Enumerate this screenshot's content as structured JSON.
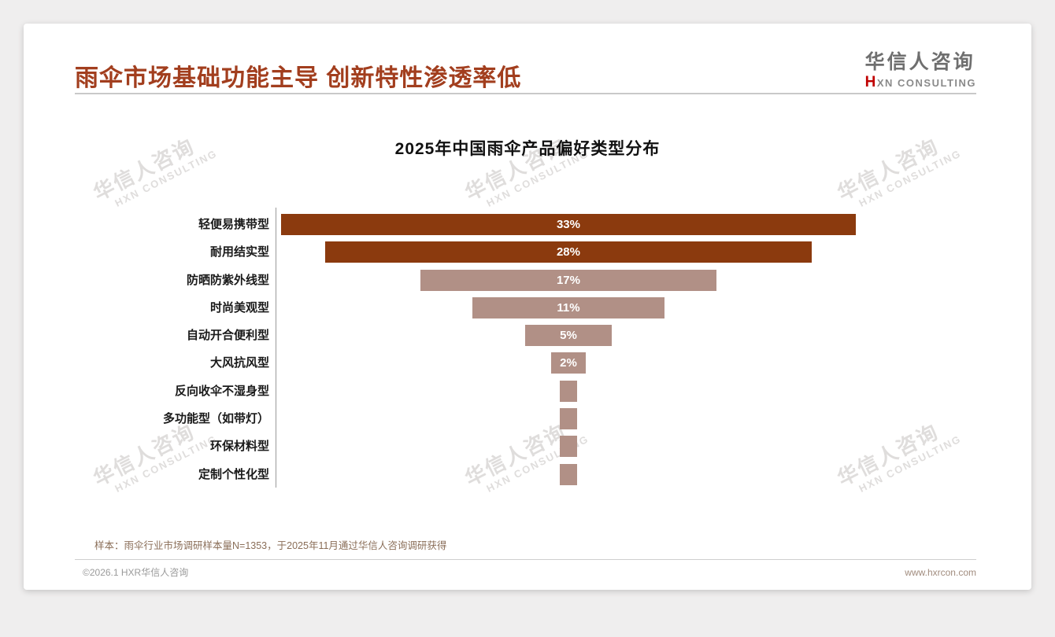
{
  "page": {
    "title": "雨伞市场基础功能主导 创新特性渗透率低",
    "logo": {
      "cn": "华信人咨询",
      "en_accent": "H",
      "en_rest": "XN CONSULTING"
    },
    "watermark": {
      "cn": "华信人咨询",
      "en": "HXN CONSULTING"
    },
    "note": "样本：雨伞行业市场调研样本量N=1353，于2025年11月通过华信人咨询调研获得",
    "footer": {
      "copyright": "©2026.1 HXR华信人咨询",
      "website": "www.hxrcon.com"
    }
  },
  "chart_data": {
    "type": "bar",
    "variant": "centered-funnel-horizontal",
    "title": "2025年中国雨伞产品偏好类型分布",
    "categories": [
      "轻便易携带型",
      "耐用结实型",
      "防晒防紫外线型",
      "时尚美观型",
      "自动开合便利型",
      "大风抗风型",
      "反向收伞不湿身型",
      "多功能型（如带灯）",
      "环保材料型",
      "定制个性化型"
    ],
    "values": [
      33,
      28,
      17,
      11,
      5,
      2,
      1,
      1,
      1,
      1
    ],
    "labels": [
      "33%",
      "28%",
      "17%",
      "11%",
      "5%",
      "2%",
      "",
      "",
      "",
      ""
    ],
    "unit": "%",
    "bar_colors": [
      "#8b3a0e",
      "#8b3a0e",
      "#b19086",
      "#b19086",
      "#b19086",
      "#b19086",
      "#b19086",
      "#b19086",
      "#b19086",
      "#b19086"
    ],
    "colors": {
      "primary": "#8b3a0e",
      "secondary": "#b19086",
      "title": "#a23e1e"
    },
    "xlim": [
      0,
      33
    ],
    "grid": false,
    "legend": "none"
  }
}
